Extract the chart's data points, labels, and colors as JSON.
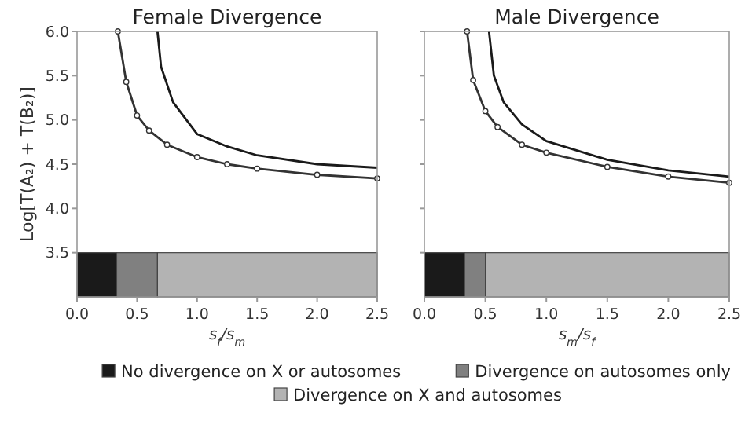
{
  "chart_data": [
    {
      "type": "line",
      "title": "Female Divergence",
      "xlabel": "s$_{f}$/s$_{m}$",
      "ylabel": "Log[T(A₂) + T(B₂)]",
      "xlim": [
        0,
        2.5
      ],
      "ylim": [
        3,
        6
      ],
      "xticks": [
        {
          "value": 0,
          "label": "0.0"
        },
        0.5,
        {
          "value": 1,
          "label": "1.0"
        },
        1.5,
        {
          "value": 2,
          "label": "2.0"
        },
        2.5
      ],
      "yticks": [
        3.5,
        {
          "value": 4,
          "label": "4.0"
        },
        4.5,
        {
          "value": 5,
          "label": "5.0"
        },
        5.5,
        {
          "value": 6,
          "label": "6.0"
        }
      ],
      "legend": false,
      "series": [
        {
          "color": "#1a1a1a",
          "marker": "none",
          "x": [
            0.67,
            0.7,
            0.8,
            1.0,
            1.25,
            1.5,
            2.0,
            2.5
          ],
          "values": [
            6.0,
            5.6,
            5.2,
            4.84,
            4.7,
            4.6,
            4.5,
            4.46
          ]
        },
        {
          "color": "#333333",
          "marker": "circle",
          "x": [
            0.34,
            0.41,
            0.5,
            0.6,
            0.75,
            1.0,
            1.25,
            1.5,
            2.0,
            2.5
          ],
          "values": [
            6.0,
            5.43,
            5.05,
            4.88,
            4.72,
            4.58,
            4.5,
            4.45,
            4.38,
            4.34
          ]
        }
      ],
      "bands": [
        {
          "axis": "x",
          "from": 0,
          "to": 0.33,
          "color": "#1a1a1a"
        },
        {
          "axis": "x",
          "from": 0.33,
          "to": 0.67,
          "color": "#808080"
        },
        {
          "axis": "x",
          "from": 0.67,
          "to": 2.5,
          "color": "#b3b3b3"
        }
      ]
    },
    {
      "type": "line",
      "title": "Male Divergence",
      "xlabel": "s$_{m}$/s$_{f}$",
      "xlim": [
        0,
        2.5
      ],
      "ylim": [
        3,
        6
      ],
      "xticks": [
        {
          "value": 0,
          "label": "0.0"
        },
        0.5,
        {
          "value": 1,
          "label": "1.0"
        },
        1.5,
        {
          "value": 2,
          "label": "2.0"
        },
        2.5
      ],
      "yticks": [
        {
          "value": 3.5,
          "label": null
        },
        {
          "value": 4,
          "label": null
        },
        {
          "value": 4.5,
          "label": null
        },
        {
          "value": 5,
          "label": null
        },
        {
          "value": 5.5,
          "label": null
        },
        {
          "value": 6,
          "label": null
        }
      ],
      "tick_labels": "x",
      "legend": "bottom",
      "series": [
        {
          "color": "#1a1a1a",
          "marker": "none",
          "x": [
            0.53,
            0.57,
            0.65,
            0.8,
            1.0,
            1.5,
            2.0,
            2.5
          ],
          "values": [
            6.0,
            5.5,
            5.2,
            4.95,
            4.76,
            4.55,
            4.43,
            4.36
          ]
        },
        {
          "color": "#333333",
          "marker": "circle",
          "x": [
            0.35,
            0.4,
            0.5,
            0.6,
            0.8,
            1.0,
            1.5,
            2.0,
            2.5
          ],
          "values": [
            6.0,
            5.45,
            5.1,
            4.92,
            4.72,
            4.63,
            4.47,
            4.36,
            4.29
          ]
        }
      ],
      "bands": [
        {
          "axis": "x",
          "from": 0,
          "to": 0.33,
          "color": "#1a1a1a",
          "label": "No divergence on X or autosomes"
        },
        {
          "axis": "x",
          "from": 0.33,
          "to": 0.5,
          "color": "#808080",
          "label": "Divergence on autosomes only"
        },
        {
          "axis": "x",
          "from": 0.5,
          "to": 2.5,
          "color": "#b3b3b3",
          "label": "Divergence on X and autosomes"
        }
      ]
    }
  ]
}
